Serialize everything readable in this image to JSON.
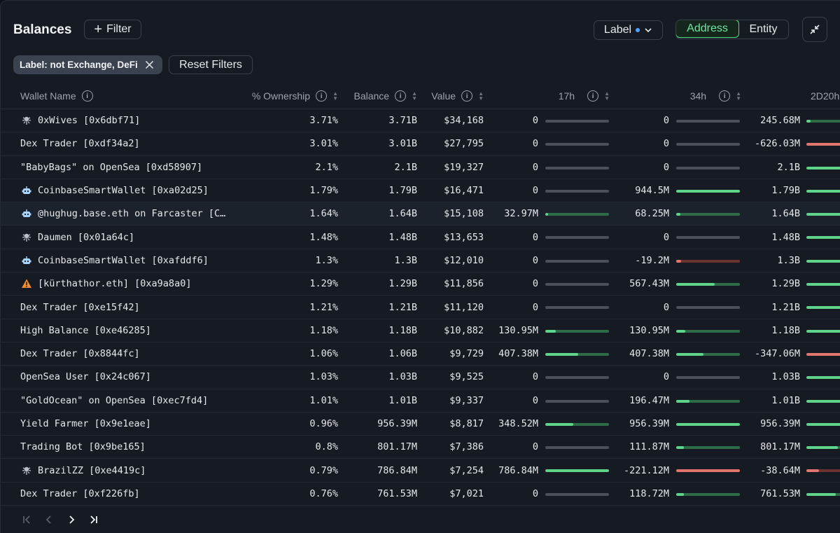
{
  "toolbar": {
    "title": "Balances",
    "filter_label": "Filter",
    "label_dropdown": "Label",
    "view_toggle": [
      "Address",
      "Entity"
    ],
    "active_view": "Address"
  },
  "filters": {
    "active_chip": "Label: not Exchange, DeFi",
    "reset_label": "Reset Filters"
  },
  "table": {
    "columns": [
      "Wallet Name",
      "% Ownership",
      "Balance",
      "Value",
      "17h",
      "34h",
      "2D20h"
    ],
    "rows": [
      {
        "icon": "bug-icon",
        "name": "0xWives [0x6dbf71]",
        "ownership": "3.71%",
        "balance": "3.71B",
        "value": "$34,168",
        "c17h": "0",
        "c17h_frac": 0,
        "c34h": "0",
        "c34h_frac": 0,
        "c2d": "245.68M",
        "c2d_frac": 0.1
      },
      {
        "icon": "",
        "name": "Dex Trader [0xdf34a2]",
        "ownership": "3.01%",
        "balance": "3.01B",
        "value": "$27,795",
        "c17h": "0",
        "c17h_frac": 0,
        "c34h": "0",
        "c34h_frac": 0,
        "c2d": "-626.03M",
        "c2d_frac": -1
      },
      {
        "icon": "",
        "name": "\"BabyBags\" on OpenSea [0xd58907]",
        "ownership": "2.1%",
        "balance": "2.1B",
        "value": "$19,327",
        "c17h": "0",
        "c17h_frac": 0,
        "c34h": "0",
        "c34h_frac": 0,
        "c2d": "2.1B",
        "c2d_frac": 1
      },
      {
        "icon": "robot-icon",
        "name": "CoinbaseSmartWallet [0xa02d25]",
        "ownership": "1.79%",
        "balance": "1.79B",
        "value": "$16,471",
        "c17h": "0",
        "c17h_frac": 0,
        "c34h": "944.5M",
        "c34h_frac": 1,
        "c2d": "1.79B",
        "c2d_frac": 1
      },
      {
        "icon": "robot-icon",
        "name": "@hughug.base.eth on Farcaster [C…",
        "ownership": "1.64%",
        "balance": "1.64B",
        "value": "$15,108",
        "c17h": "32.97M",
        "c17h_frac": 0.04,
        "c34h": "68.25M",
        "c34h_frac": 0.07,
        "c2d": "1.64B",
        "c2d_frac": 1,
        "highlight": true
      },
      {
        "icon": "bug-icon",
        "name": "Daumen [0x01a64c]",
        "ownership": "1.48%",
        "balance": "1.48B",
        "value": "$13,653",
        "c17h": "0",
        "c17h_frac": 0,
        "c34h": "0",
        "c34h_frac": 0,
        "c2d": "1.48B",
        "c2d_frac": 1
      },
      {
        "icon": "robot-icon",
        "name": "CoinbaseSmartWallet [0xafddf6]",
        "ownership": "1.3%",
        "balance": "1.3B",
        "value": "$12,010",
        "c17h": "0",
        "c17h_frac": 0,
        "c34h": "-19.2M",
        "c34h_frac": -0.08,
        "c2d": "1.3B",
        "c2d_frac": 1
      },
      {
        "icon": "warning-icon",
        "name": "[kürthathor.eth] [0xa9a8a0]",
        "ownership": "1.29%",
        "balance": "1.29B",
        "value": "$11,856",
        "c17h": "0",
        "c17h_frac": 0,
        "c34h": "567.43M",
        "c34h_frac": 0.6,
        "c2d": "1.29B",
        "c2d_frac": 1
      },
      {
        "icon": "",
        "name": "Dex Trader [0xe15f42]",
        "ownership": "1.21%",
        "balance": "1.21B",
        "value": "$11,120",
        "c17h": "0",
        "c17h_frac": 0,
        "c34h": "0",
        "c34h_frac": 0,
        "c2d": "1.21B",
        "c2d_frac": 1
      },
      {
        "icon": "",
        "name": "High Balance [0xe46285]",
        "ownership": "1.18%",
        "balance": "1.18B",
        "value": "$10,882",
        "c17h": "130.95M",
        "c17h_frac": 0.17,
        "c34h": "130.95M",
        "c34h_frac": 0.14,
        "c2d": "1.18B",
        "c2d_frac": 1
      },
      {
        "icon": "",
        "name": "Dex Trader [0x8844fc]",
        "ownership": "1.06%",
        "balance": "1.06B",
        "value": "$9,729",
        "c17h": "407.38M",
        "c17h_frac": 0.52,
        "c34h": "407.38M",
        "c34h_frac": 0.43,
        "c2d": "-347.06M",
        "c2d_frac": -1
      },
      {
        "icon": "",
        "name": "OpenSea User [0x24c067]",
        "ownership": "1.03%",
        "balance": "1.03B",
        "value": "$9,525",
        "c17h": "0",
        "c17h_frac": 0,
        "c34h": "0",
        "c34h_frac": 0,
        "c2d": "1.03B",
        "c2d_frac": 1
      },
      {
        "icon": "",
        "name": "\"GoldOcean\" on OpenSea [0xec7fd4]",
        "ownership": "1.01%",
        "balance": "1.01B",
        "value": "$9,337",
        "c17h": "0",
        "c17h_frac": 0,
        "c34h": "196.47M",
        "c34h_frac": 0.21,
        "c2d": "1.01B",
        "c2d_frac": 1
      },
      {
        "icon": "",
        "name": "Yield Farmer [0x9e1eae]",
        "ownership": "0.96%",
        "balance": "956.39M",
        "value": "$8,817",
        "c17h": "348.52M",
        "c17h_frac": 0.44,
        "c34h": "956.39M",
        "c34h_frac": 1,
        "c2d": "956.39M",
        "c2d_frac": 0.9
      },
      {
        "icon": "",
        "name": "Trading Bot [0x9be165]",
        "ownership": "0.8%",
        "balance": "801.17M",
        "value": "$7,386",
        "c17h": "0",
        "c17h_frac": 0,
        "c34h": "111.87M",
        "c34h_frac": 0.12,
        "c2d": "801.17M",
        "c2d_frac": 0.75
      },
      {
        "icon": "bug-icon",
        "name": "BrazilZZ [0xe4419c]",
        "ownership": "0.79%",
        "balance": "786.84M",
        "value": "$7,254",
        "c17h": "786.84M",
        "c17h_frac": 1,
        "c34h": "-221.12M",
        "c34h_frac": -1,
        "c2d": "-38.64M",
        "c2d_frac": -0.3
      },
      {
        "icon": "",
        "name": "Dex Trader [0xf226fb]",
        "ownership": "0.76%",
        "balance": "761.53M",
        "value": "$7,021",
        "c17h": "0",
        "c17h_frac": 0,
        "c34h": "118.72M",
        "c34h_frac": 0.12,
        "c2d": "761.53M",
        "c2d_frac": 0.7
      }
    ]
  },
  "colors": {
    "positive": "#5fd38a",
    "positive_dim": "#2e6b47",
    "negative": "#e2766f",
    "negative_dim": "#6b3330",
    "bar_track": "#4b5058"
  }
}
